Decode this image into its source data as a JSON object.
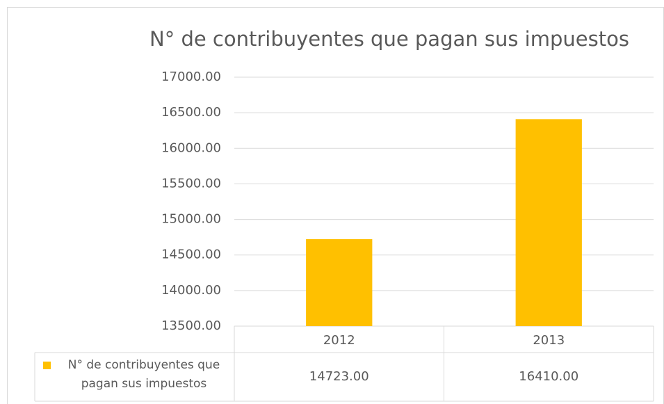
{
  "chart_data": {
    "type": "bar",
    "title": "N° de contribuyentes que pagan sus impuestos",
    "categories": [
      "2012",
      "2013"
    ],
    "series": [
      {
        "name": "N° de contribuyentes que pagan sus impuestos",
        "color": "#FFC000",
        "values": [
          14723,
          16410
        ],
        "value_labels": [
          "14723.00",
          "16410.00"
        ]
      }
    ],
    "ylim": [
      13500,
      17000
    ],
    "yticks": [
      {
        "value": 13500,
        "label": "13500.00"
      },
      {
        "value": 14000,
        "label": "14000.00"
      },
      {
        "value": 14500,
        "label": "14500.00"
      },
      {
        "value": 15000,
        "label": "15000.00"
      },
      {
        "value": 15500,
        "label": "15500.00"
      },
      {
        "value": 16000,
        "label": "16000.00"
      },
      {
        "value": 16500,
        "label": "16500.00"
      },
      {
        "value": 17000,
        "label": "17000.00"
      }
    ],
    "grid": true,
    "data_table": true
  }
}
